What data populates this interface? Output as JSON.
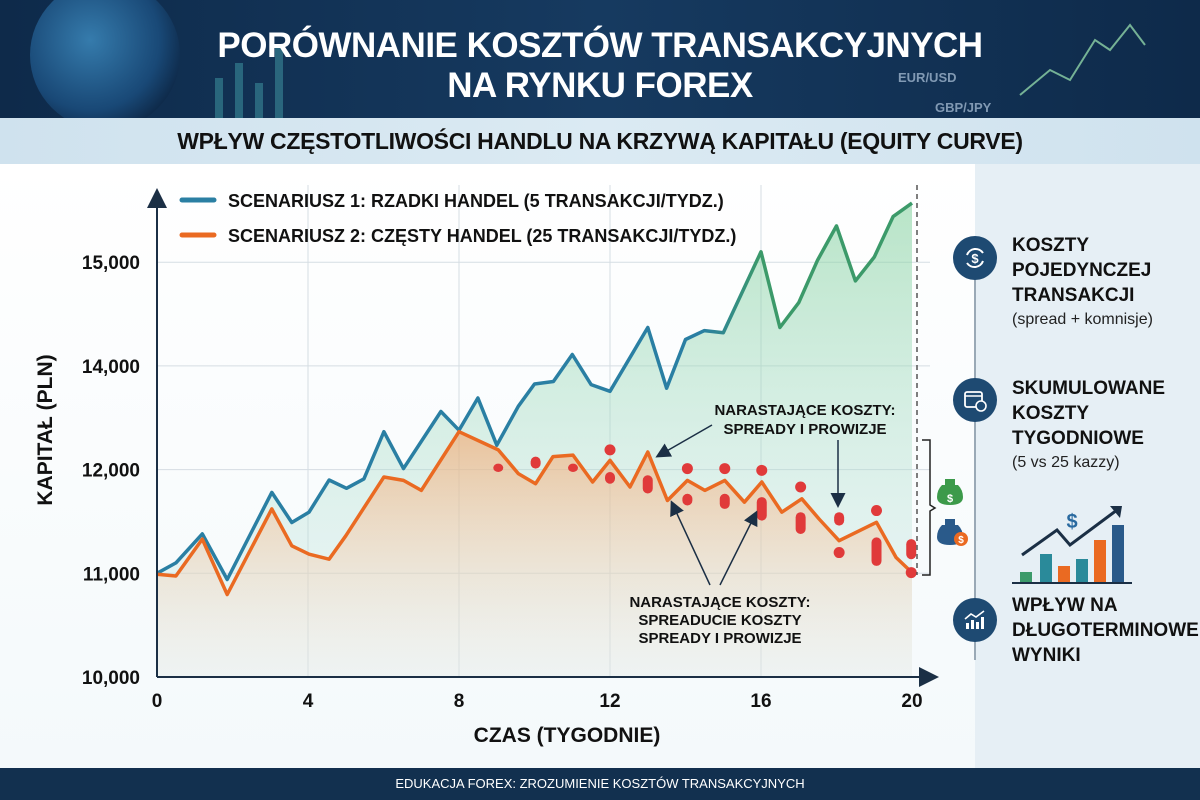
{
  "header": {
    "title_line1": "PORÓWNANIE KOSZTÓW TRANSAKCYJNYCH",
    "title_line2": "NA RYNKU FOREX",
    "deco_tags": [
      "EUR/USD",
      "GBP/JPY"
    ]
  },
  "subtitle": "WPŁYW CZĘSTOTLIWOŚCI HANDLU NA KRZYWĄ KAPITAŁU (EQUITY CURVE)",
  "chart_data": {
    "type": "line",
    "xlabel": "CZAS (TYGODNIE)",
    "ylabel": "KAPITAŁ (PLN)",
    "xlim": [
      0,
      20
    ],
    "x_ticks": [
      0,
      4,
      8,
      12,
      16,
      20
    ],
    "y_ticks": [
      {
        "value": 10000,
        "label": "10,000"
      },
      {
        "value": 11000,
        "label": "11,000"
      },
      {
        "value": 12000,
        "label": "12,000"
      },
      {
        "value": 14000,
        "label": "14,000"
      },
      {
        "value": 15000,
        "label": "15,000"
      }
    ],
    "grid": true,
    "legend_placement": "top-left",
    "colors": {
      "series1": "#2a7fa3",
      "series1_gain": "#3c9a6a",
      "series2": "#ea6a22",
      "cost_marker": "#e03a3a"
    },
    "series": [
      {
        "name": "SCENARIUSZ 1: RZADKI HANDEL (5 TRANSAKCJI/TYDZ.)",
        "x": [
          0,
          0.5,
          1.2,
          1.86,
          3.04,
          3.57,
          4.03,
          4.56,
          5.02,
          5.48,
          6.01,
          6.53,
          7.52,
          8,
          8.5,
          9,
          9.57,
          10,
          10.5,
          11,
          11.5,
          12,
          13,
          13.5,
          14,
          14.5,
          15,
          16,
          16.5,
          17,
          17.5,
          18,
          18.5,
          19,
          19.5,
          20
        ],
        "y": [
          11000,
          11100,
          11380,
          10940,
          11780,
          11490,
          11590,
          11900,
          11820,
          11910,
          12730,
          12020,
          13120,
          12760,
          13380,
          12470,
          13220,
          13650,
          13700,
          14110,
          13640,
          13510,
          14370,
          13570,
          14255,
          14340,
          14320,
          15100,
          14370,
          14610,
          15020,
          15350,
          14820,
          15050,
          15440,
          15570
        ]
      },
      {
        "name": "SCENARIUSZ 2: CZĘSTY HANDEL (25 TRANSAKCJI/TYDZ.)",
        "x": [
          0,
          0.5,
          1.2,
          1.86,
          3.04,
          3.57,
          4.03,
          4.56,
          5.0,
          6.01,
          6.53,
          7.0,
          8,
          9.04,
          9.57,
          10.03,
          10.49,
          11.02,
          11.54,
          12,
          12.53,
          13,
          13.52,
          14.05,
          14.51,
          15.04,
          15.56,
          16.02,
          16.55,
          17.08,
          17.54,
          18.07,
          19.06,
          19.58,
          20
        ],
        "y": [
          10990,
          10974,
          11330,
          10796,
          11621,
          11265,
          11184,
          11136,
          11362,
          11929,
          11896,
          11799,
          12730,
          12380,
          11961,
          11864,
          12250,
          12280,
          11880,
          12180,
          11832,
          12340,
          11702,
          11896,
          11799,
          11896,
          11686,
          11880,
          11589,
          11718,
          11524,
          11314,
          11492,
          11152,
          11007
        ]
      }
    ],
    "cost_markers": [
      {
        "week": 9.04,
        "low": 11977,
        "high": 12116
      },
      {
        "week": 10.03,
        "low": 12020,
        "high": 12250
      },
      {
        "week": 11.02,
        "low": 11977,
        "high": 12116
      },
      {
        "week": 12.0,
        "low": 11864,
        "high": 11977
      },
      {
        "week": 12.0,
        "low": 12380,
        "high": 12380
      },
      {
        "week": 13.0,
        "low": 11770,
        "high": 11945
      },
      {
        "week": 14.05,
        "low": 11654,
        "high": 11767
      },
      {
        "week": 14.05,
        "low": 12020,
        "high": 12020
      },
      {
        "week": 15.04,
        "low": 11621,
        "high": 11767
      },
      {
        "week": 15.04,
        "low": 12020,
        "high": 12020
      },
      {
        "week": 16.02,
        "low": 11508,
        "high": 11735
      },
      {
        "week": 16.02,
        "low": 11993,
        "high": 11993
      },
      {
        "week": 17.05,
        "low": 11379,
        "high": 11589
      },
      {
        "week": 17.05,
        "low": 11832,
        "high": 11832
      },
      {
        "week": 18.07,
        "low": 11460,
        "high": 11589
      },
      {
        "week": 18.07,
        "low": 11200,
        "high": 11200
      },
      {
        "week": 19.06,
        "low": 11071,
        "high": 11346
      },
      {
        "week": 19.06,
        "low": 11605,
        "high": 11605
      },
      {
        "week": 19.98,
        "low": 11136,
        "high": 11330
      },
      {
        "week": 19.98,
        "low": 11007,
        "high": 11007
      }
    ],
    "annotations": [
      {
        "lines": [
          "NARASTAJĄCE KOSZTY:",
          "SPREADY I PROWIZJE"
        ]
      },
      {
        "lines": [
          "NARASTAJĄCE KOSZTY:",
          "SPREADUCIE KOSZTY",
          "SPREADY I PROWIZJE"
        ]
      }
    ]
  },
  "right_panel": {
    "items": [
      {
        "icon": "dollar-cycle-icon",
        "head": [
          "KOSZTY",
          "POJEDYNCZEJ",
          "TRANSAKCJI"
        ],
        "sub": "(spread + komnisje)"
      },
      {
        "icon": "calendar-clock-icon",
        "head": [
          "SKUMULOWANE",
          "KOSZTY",
          "TYGODNIOWE"
        ],
        "sub": "(5 vs 25 kazzy)"
      },
      {
        "icon": "growth-chart-icon",
        "head": [
          "WPŁYW NA",
          "DŁUGOTERMINOWE",
          "WYNIKI"
        ]
      }
    ]
  },
  "footer": "EDUKACJA FOREX: ZROZUMIENIE KOSZTÓW TRANSAKCYJNYCH"
}
